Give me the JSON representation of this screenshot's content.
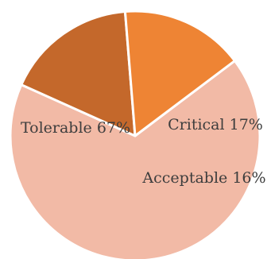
{
  "chart_data": {
    "type": "pie",
    "title": "",
    "slices": [
      {
        "label": "Tolerable",
        "value": 67,
        "display": "Tolerable 67%",
        "color": "#f2baa6"
      },
      {
        "label": "Critical",
        "value": 17,
        "display": "Critical 17%",
        "color": "#c4682b"
      },
      {
        "label": "Acceptable",
        "value": 16,
        "display": "Acceptable 16%",
        "color": "#ee8434"
      }
    ],
    "start_angle_deg": 37,
    "direction": "clockwise",
    "legend": "none"
  }
}
